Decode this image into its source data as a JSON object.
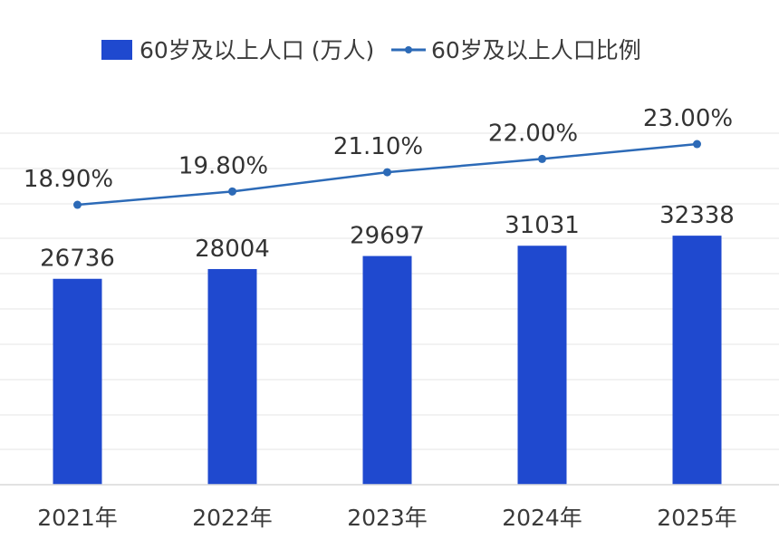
{
  "chart_data": {
    "type": "bar",
    "categories": [
      "2021年",
      "2022年",
      "2023年",
      "2024年",
      "2025年"
    ],
    "series": [
      {
        "name": "60岁及以上人口 (万人)",
        "type": "bar",
        "axis": "left",
        "color": "#1f49cf",
        "values": [
          26736,
          28004,
          29697,
          31031,
          32338
        ],
        "labels": [
          "26736",
          "28004",
          "29697",
          "31031",
          "32338"
        ]
      },
      {
        "name": "60岁及以上人口比例",
        "type": "line",
        "axis": "right",
        "color": "#2c6ab7",
        "values": [
          18.9,
          19.8,
          21.1,
          22.0,
          23.0
        ],
        "labels": [
          "18.90%",
          "19.80%",
          "21.10%",
          "22.00%",
          "23.00%"
        ]
      }
    ],
    "left_ylim": [
      0,
      50000
    ],
    "right_ylim": [
      0,
      26
    ],
    "legend_position": "top",
    "grid": true
  }
}
